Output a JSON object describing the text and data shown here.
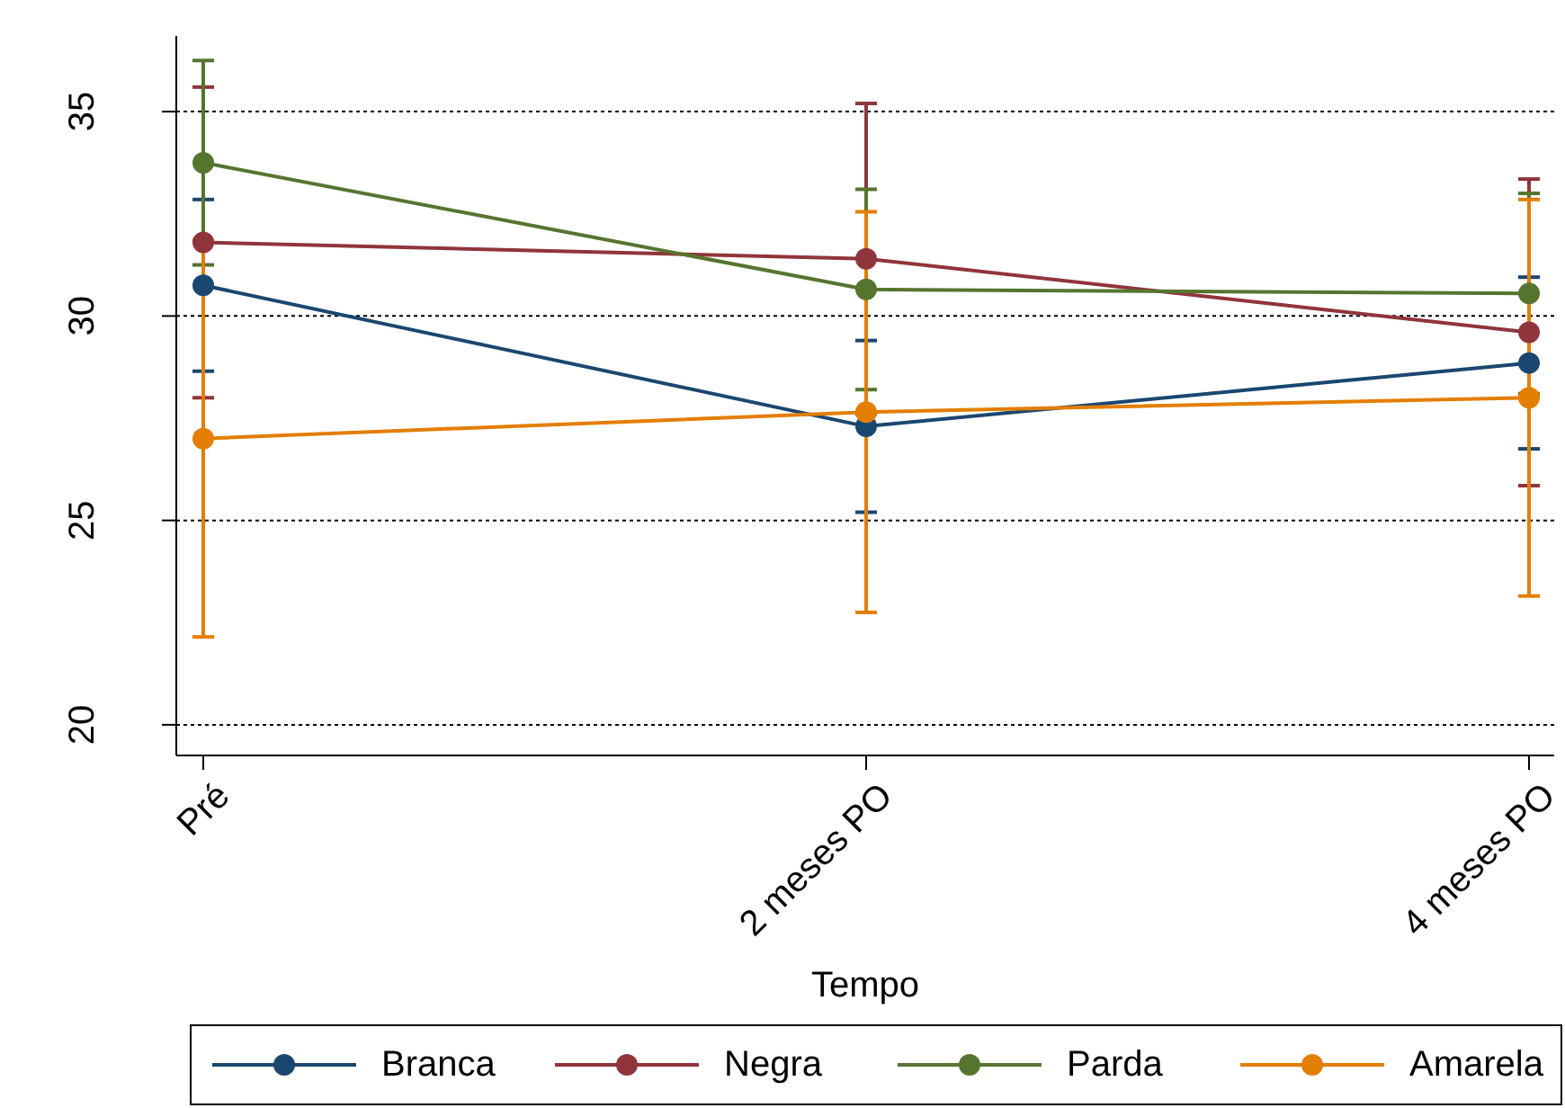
{
  "chart_data": {
    "type": "line",
    "xlabel": "Tempo",
    "categories": [
      "Pré",
      "2 meses PO",
      "4 meses PO"
    ],
    "series": [
      {
        "name": "Branca",
        "color": "#1a476f",
        "values": [
          30.75,
          27.3,
          28.85
        ],
        "errors": [
          2.1,
          2.1,
          2.1
        ]
      },
      {
        "name": "Negra",
        "color": "#90353b",
        "values": [
          31.8,
          31.4,
          29.6
        ],
        "errors": [
          3.8,
          3.8,
          3.75
        ]
      },
      {
        "name": "Parda",
        "color": "#55752f",
        "values": [
          33.75,
          30.65,
          30.55
        ],
        "errors": [
          2.5,
          2.45,
          2.45
        ]
      },
      {
        "name": "Amarela",
        "color": "#e37e00",
        "values": [
          27.0,
          27.65,
          28.0
        ],
        "errors": [
          4.85,
          4.9,
          4.85
        ]
      }
    ],
    "ylim": [
      19.25,
      36.85
    ],
    "yticks": [
      20,
      25,
      30,
      35
    ],
    "grid": "y",
    "legend": "bottom",
    "marker": "circle",
    "line_style": "solid"
  }
}
